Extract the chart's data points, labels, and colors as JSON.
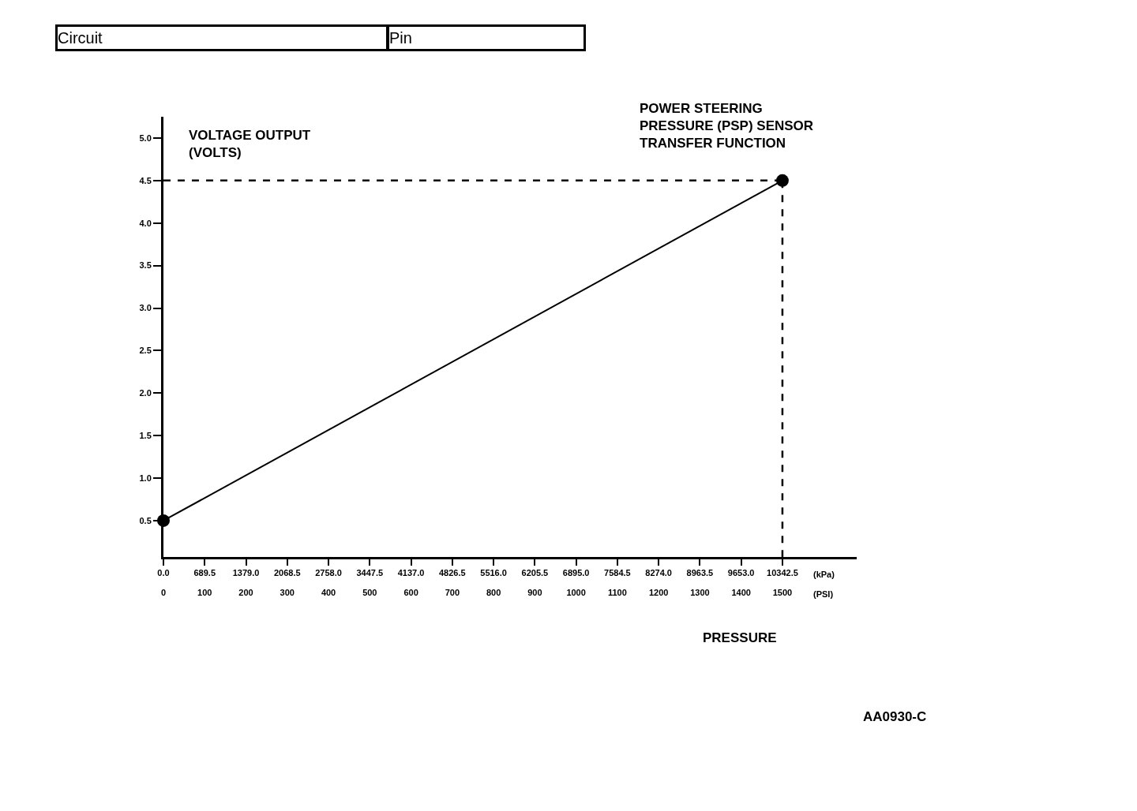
{
  "chart_data": {
    "type": "line",
    "title": "POWER STEERING\nPRESSURE (PSP) SENSOR\nTRANSFER FUNCTION",
    "ylabel": "VOLTAGE OUTPUT\n(VOLTS)",
    "xlabel": "PRESSURE",
    "x": [
      0,
      1500
    ],
    "series": [
      {
        "color": "#000000",
        "values": [
          0.5,
          4.5
        ]
      }
    ],
    "xlim": [
      0,
      1680
    ],
    "xticks": [
      0,
      100,
      200,
      300,
      400,
      500,
      600,
      700,
      800,
      900,
      1000,
      1100,
      1200,
      1300,
      1400,
      1500
    ],
    "x2lim": [
      0,
      11583.6
    ],
    "x2ticks": [
      {
        "value": 0,
        "label": "0.0"
      },
      689.5,
      {
        "value": 1379,
        "label": "1379.0"
      },
      2068.5,
      {
        "value": 2758,
        "label": "2758.0"
      },
      3447.5,
      {
        "value": 4137,
        "label": "4137.0"
      },
      4826.5,
      {
        "value": 5516,
        "label": "5516.0"
      },
      6205.5,
      {
        "value": 6895,
        "label": "6895.0"
      },
      7584.5,
      {
        "value": 8274,
        "label": "8274.0"
      },
      8963.5,
      {
        "value": 9653,
        "label": "9653.0"
      },
      10342.5
    ],
    "ylim": [
      0.07,
      5.25
    ],
    "yticks": [
      0.5,
      {
        "value": 1,
        "label": "1.0"
      },
      1.5,
      {
        "value": 2,
        "label": "2.0"
      },
      2.5,
      {
        "value": 3,
        "label": "3.0"
      },
      3.5,
      {
        "value": 4,
        "label": "4.0"
      },
      4.5,
      {
        "value": 5,
        "label": "5.0"
      }
    ],
    "ref_lines": [
      {
        "axis": "y",
        "value": 4.5,
        "line_style": "dashed",
        "color": "#000000"
      },
      {
        "axis": "x",
        "value": 1500,
        "line_style": "dashed",
        "color": "#000000"
      }
    ],
    "marker": "circle",
    "line_style": "solid",
    "grid": false,
    "annotations": [
      "(kPa)",
      "(PSI)",
      "AA0930-C",
      "Circuit",
      "Pin"
    ]
  }
}
